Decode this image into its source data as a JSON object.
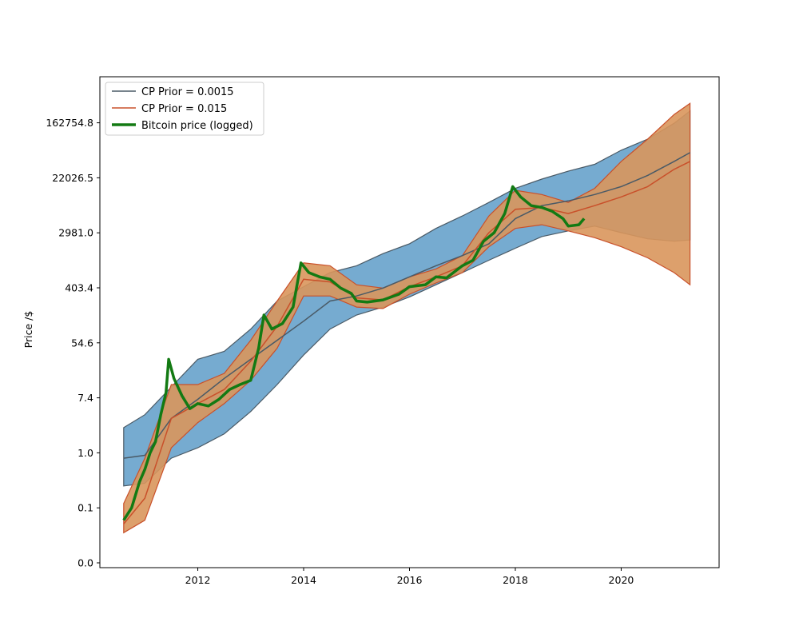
{
  "chart_data": {
    "type": "line",
    "title": "",
    "xlabel": "",
    "ylabel": "Price /$",
    "y_scale": "log",
    "y_tick_labels": [
      "0.0",
      "0.1",
      "1.0",
      "7.4",
      "54.6",
      "403.4",
      "2981.0",
      "22026.5",
      "162754.8"
    ],
    "y_tick_values": [
      0.0,
      0.1,
      1.0,
      7.4,
      54.6,
      403.4,
      2981.0,
      22026.5,
      162754.8
    ],
    "x_tick_labels": [
      "2012",
      "2014",
      "2016",
      "2018",
      "2020"
    ],
    "x_tick_values": [
      2012,
      2014,
      2016,
      2018,
      2020
    ],
    "xlim": [
      2010.15,
      2021.85
    ],
    "legend_position": "top-left",
    "grid": false,
    "series": [
      {
        "name": "CP Prior = 0.0015",
        "color": "#4a5a66",
        "band_fill": "#6fa6cd",
        "x": [
          2010.6,
          2011.0,
          2011.5,
          2012.0,
          2012.5,
          2013.0,
          2013.5,
          2014.0,
          2014.5,
          2015.0,
          2015.5,
          2016.0,
          2016.5,
          2017.0,
          2017.5,
          2018.0,
          2018.5,
          2019.0,
          2019.5,
          2020.0,
          2020.5,
          2021.0,
          2021.3
        ],
        "mean": [
          0.8,
          0.9,
          3.5,
          7.0,
          15,
          30,
          60,
          120,
          250,
          300,
          400,
          600,
          900,
          1300,
          2000,
          5000,
          8000,
          9500,
          12000,
          16000,
          24000,
          40000,
          55000
        ],
        "lower": [
          0.25,
          0.28,
          0.8,
          1.2,
          2.0,
          4.5,
          12,
          35,
          90,
          150,
          200,
          290,
          450,
          700,
          1100,
          1700,
          2600,
          3200,
          3800,
          3000,
          2400,
          2200,
          2300
        ],
        "upper": [
          2.5,
          4.0,
          11,
          30,
          40,
          90,
          250,
          420,
          700,
          900,
          1400,
          2000,
          3500,
          5500,
          9000,
          15000,
          21000,
          28000,
          36000,
          60000,
          90000,
          160000,
          250000
        ]
      },
      {
        "name": "CP Prior = 0.015",
        "color": "#c9502a",
        "band_fill": "#d9965c",
        "x": [
          2010.6,
          2011.0,
          2011.5,
          2012.0,
          2012.5,
          2013.0,
          2013.5,
          2014.0,
          2014.5,
          2015.0,
          2015.5,
          2016.0,
          2016.5,
          2017.0,
          2017.5,
          2018.0,
          2018.5,
          2019.0,
          2019.5,
          2020.0,
          2020.5,
          2021.0,
          2021.3
        ],
        "mean": [
          0.05,
          0.15,
          3.5,
          6.0,
          10,
          28,
          100,
          550,
          500,
          280,
          260,
          420,
          600,
          900,
          3000,
          7000,
          7500,
          6000,
          8000,
          11000,
          16000,
          30000,
          40000
        ],
        "lower": [
          0.03,
          0.06,
          1.2,
          3.0,
          6.0,
          14,
          45,
          300,
          300,
          200,
          190,
          320,
          480,
          700,
          1800,
          3500,
          4000,
          3200,
          2500,
          1800,
          1200,
          700,
          450
        ],
        "upper": [
          0.12,
          0.8,
          12,
          12,
          18,
          60,
          250,
          1000,
          900,
          450,
          400,
          600,
          800,
          1300,
          5500,
          14000,
          12000,
          9000,
          15000,
          40000,
          90000,
          220000,
          330000
        ]
      },
      {
        "name": "Bitcoin price (logged)",
        "color": "#137a13",
        "x": [
          2010.6,
          2010.75,
          2010.9,
          2011.0,
          2011.1,
          2011.2,
          2011.3,
          2011.4,
          2011.45,
          2011.55,
          2011.7,
          2011.85,
          2012.0,
          2012.2,
          2012.4,
          2012.6,
          2012.8,
          2013.0,
          2013.15,
          2013.25,
          2013.4,
          2013.6,
          2013.8,
          2013.95,
          2014.1,
          2014.3,
          2014.5,
          2014.7,
          2014.9,
          2015.0,
          2015.2,
          2015.5,
          2015.8,
          2016.0,
          2016.3,
          2016.5,
          2016.7,
          2017.0,
          2017.2,
          2017.4,
          2017.6,
          2017.8,
          2017.95,
          2018.1,
          2018.3,
          2018.5,
          2018.7,
          2018.9,
          2019.0,
          2019.2,
          2019.3
        ],
        "y": [
          0.06,
          0.1,
          0.3,
          0.5,
          1.0,
          1.5,
          4.0,
          9.0,
          30,
          15,
          8,
          5,
          6,
          5.5,
          7,
          10,
          12,
          14,
          45,
          150,
          90,
          110,
          200,
          1000,
          700,
          600,
          550,
          400,
          330,
          250,
          240,
          260,
          320,
          420,
          450,
          600,
          580,
          900,
          1100,
          2200,
          3000,
          6000,
          16000,
          11000,
          8000,
          7500,
          6500,
          5000,
          3800,
          4000,
          5000
        ]
      }
    ]
  }
}
